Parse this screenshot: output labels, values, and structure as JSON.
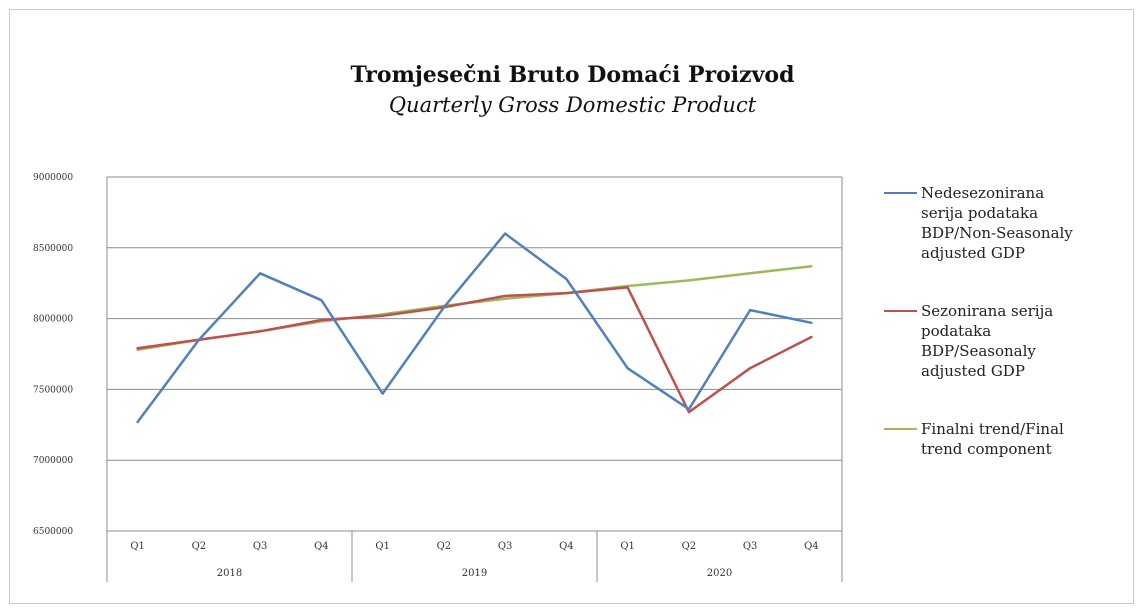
{
  "chart_data": {
    "type": "line",
    "title": "Tromjesečni Bruto Domaći Proizvod",
    "subtitle": "Quarterly Gross Domestic Product",
    "xlabel": "",
    "ylabel": "",
    "categories": [
      "Q1",
      "Q2",
      "Q3",
      "Q4",
      "Q1",
      "Q2",
      "Q3",
      "Q4",
      "Q1",
      "Q2",
      "Q3",
      "Q4"
    ],
    "groups": [
      {
        "label": "2018",
        "start": 0,
        "end": 3
      },
      {
        "label": "2019",
        "start": 4,
        "end": 7
      },
      {
        "label": "2020",
        "start": 8,
        "end": 11
      }
    ],
    "ylim": [
      6500000,
      9000000
    ],
    "yticks": [
      "6500000",
      "7000000",
      "7500000",
      "8000000",
      "8500000",
      "9000000"
    ],
    "grid": true,
    "legend_position": "right",
    "series": [
      {
        "name": "Nedesezonirana serija podataka BDP/Non-Seasonaly adjusted GDP",
        "color": "#4f81bd",
        "values": [
          7270000,
          7850000,
          8320000,
          8130000,
          7470000,
          8080000,
          8600000,
          8280000,
          7650000,
          7360000,
          8060000,
          7970000
        ]
      },
      {
        "name": "Sezonirana serija podataka BDP/Seasonaly adjusted GDP",
        "color": "#c0504d",
        "values": [
          7790000,
          7850000,
          7910000,
          7990000,
          8020000,
          8080000,
          8160000,
          8180000,
          8220000,
          7340000,
          7650000,
          7870000
        ]
      },
      {
        "name": "Finalni trend/Final trend component",
        "color": "#9bbb59",
        "values": [
          7780000,
          7850000,
          7910000,
          7980000,
          8030000,
          8090000,
          8140000,
          8180000,
          8230000,
          8270000,
          8320000,
          8370000
        ]
      }
    ]
  }
}
